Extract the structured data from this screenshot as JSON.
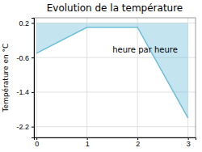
{
  "chart_data": {
    "type": "area",
    "title": "Evolution de la température",
    "ylabel": "Température en °C",
    "annotations": [
      {
        "text": "heure par heure",
        "x": 2.15,
        "y": -0.42
      }
    ],
    "x": [
      0,
      1,
      2,
      3
    ],
    "values": [
      -0.5,
      0.1,
      0.1,
      -2.0
    ],
    "fill_top": 0.2,
    "color": "#6bbfd8",
    "xlim": [
      -0.05,
      3.15
    ],
    "ylim": [
      -2.45,
      0.32
    ],
    "xticks": [
      0,
      1,
      2,
      3
    ],
    "yticks": [
      0.2,
      -0.6,
      -1.4,
      -2.2
    ],
    "grid": true
  }
}
